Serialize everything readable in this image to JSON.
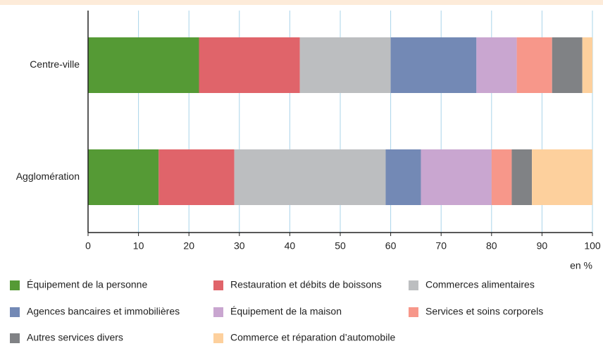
{
  "chart_data": {
    "type": "stacked-barh",
    "categories": [
      "Centre-ville",
      "Agglomération"
    ],
    "series": [
      {
        "name": "Équipement de la personne",
        "color": "#559a35",
        "values": [
          22,
          14
        ]
      },
      {
        "name": "Restauration et débits de boissons",
        "color": "#e0646a",
        "values": [
          20,
          15
        ]
      },
      {
        "name": "Commerces alimentaires",
        "color": "#bcbec0",
        "values": [
          18,
          30
        ]
      },
      {
        "name": "Agences bancaires et immobilières",
        "color": "#7389b5",
        "values": [
          17,
          7
        ]
      },
      {
        "name": "Équipement de la maison",
        "color": "#c9a6d0",
        "values": [
          8,
          14
        ]
      },
      {
        "name": "Services et soins corporels",
        "color": "#f7978a",
        "values": [
          7,
          4
        ]
      },
      {
        "name": "Autres services divers",
        "color": "#808285",
        "values": [
          6,
          4
        ]
      },
      {
        "name": "Commerce et réparation d’automobile",
        "color": "#fdd09d",
        "values": [
          2,
          12
        ]
      }
    ],
    "xlabel": "en %",
    "xlim": [
      0,
      100
    ],
    "xticks": [
      0,
      10,
      20,
      30,
      40,
      50,
      60,
      70,
      80,
      90,
      100
    ],
    "grid": true
  }
}
